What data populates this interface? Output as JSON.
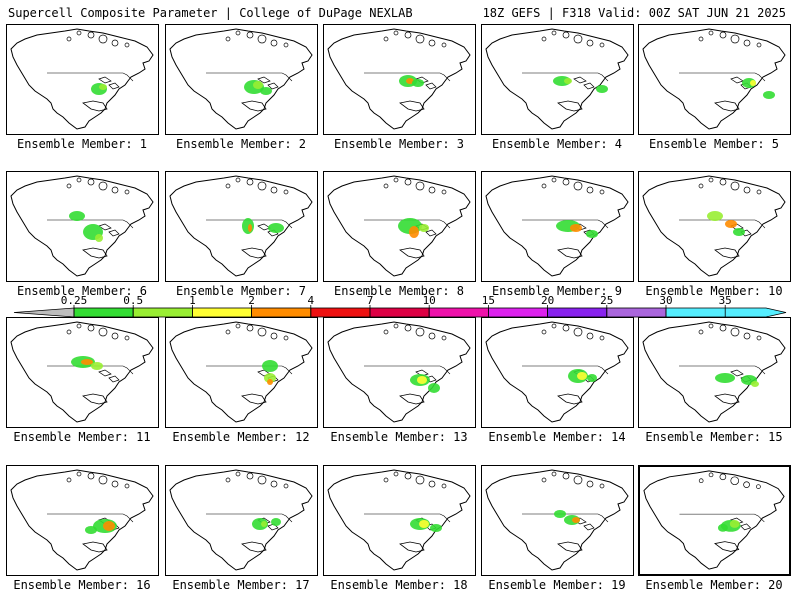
{
  "header": {
    "left_title": "Supercell Composite Parameter | College of DuPage NEXLAB",
    "right_title": "18Z GEFS | F318 Valid: 00Z SAT JUN 21 2025"
  },
  "colorbar": {
    "labels": [
      "0.25",
      "0.5",
      "1",
      "2",
      "4",
      "7",
      "10",
      "15",
      "20",
      "25",
      "30",
      "35"
    ],
    "colors": [
      "#bdbdbd",
      "#33dd33",
      "#99ee33",
      "#ffff33",
      "#ff8c00",
      "#ee1111",
      "#dd0044",
      "#ee11aa",
      "#dd22ee",
      "#8822ee",
      "#aa66dd",
      "#55eeff"
    ]
  },
  "colors": {
    "border": "#000000",
    "scp_low": "#bdbdbd",
    "scp_green": "#33dd33",
    "scp_lightgreen": "#99ee33",
    "scp_yellow": "#ffff33",
    "scp_orange": "#ff8c00",
    "scp_red": "#ee1111"
  },
  "members": [
    {
      "label": "Ensemble Member: 1",
      "selected": false
    },
    {
      "label": "Ensemble Member: 2",
      "selected": false
    },
    {
      "label": "Ensemble Member: 3",
      "selected": false
    },
    {
      "label": "Ensemble Member: 4",
      "selected": false
    },
    {
      "label": "Ensemble Member: 5",
      "selected": false
    },
    {
      "label": "Ensemble Member: 6",
      "selected": false
    },
    {
      "label": "Ensemble Member: 7",
      "selected": false
    },
    {
      "label": "Ensemble Member: 8",
      "selected": false
    },
    {
      "label": "Ensemble Member: 9",
      "selected": false
    },
    {
      "label": "Ensemble Member: 10",
      "selected": false
    },
    {
      "label": "Ensemble Member: 11",
      "selected": false
    },
    {
      "label": "Ensemble Member: 12",
      "selected": false
    },
    {
      "label": "Ensemble Member: 13",
      "selected": false
    },
    {
      "label": "Ensemble Member: 14",
      "selected": false
    },
    {
      "label": "Ensemble Member: 15",
      "selected": false
    },
    {
      "label": "Ensemble Member: 16",
      "selected": false
    },
    {
      "label": "Ensemble Member: 17",
      "selected": false
    },
    {
      "label": "Ensemble Member: 18",
      "selected": false
    },
    {
      "label": "Ensemble Member: 19",
      "selected": false
    },
    {
      "label": "Ensemble Member: 20",
      "selected": true
    }
  ]
}
